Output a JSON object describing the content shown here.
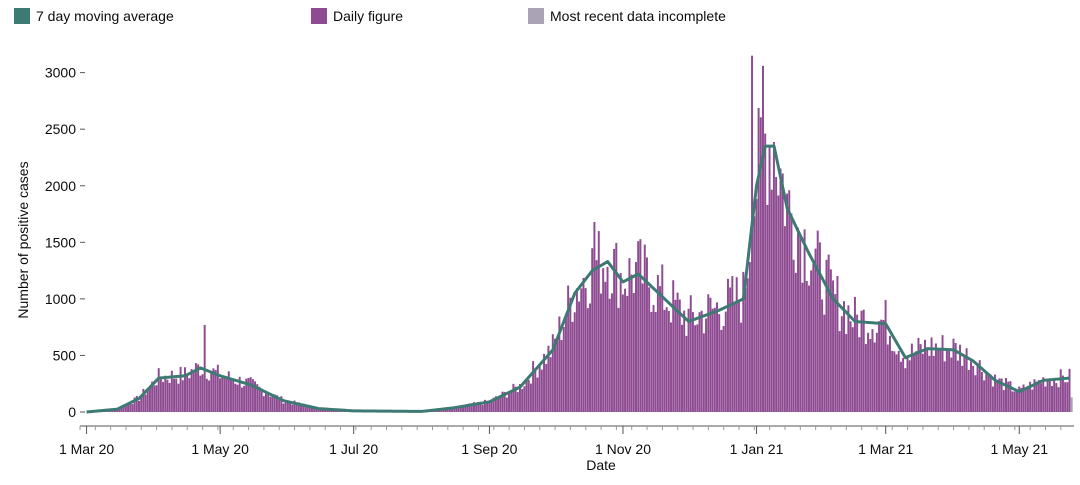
{
  "legend": [
    {
      "label": "7 day moving average",
      "color": "#3d7a74"
    },
    {
      "label": "Daily figure",
      "color": "#8e4b91"
    },
    {
      "label": "Most recent data incomplete",
      "color": "#a9a3b5"
    }
  ],
  "chart_data": {
    "type": "bar",
    "title": "",
    "xlabel": "Date",
    "ylabel": "Number of positive cases",
    "ylim": [
      0,
      3200
    ],
    "yticks": [
      "0",
      "500",
      "1000",
      "1500",
      "2000",
      "2500",
      "3000"
    ],
    "xticks": [
      {
        "label": "1 Mar 20",
        "date": "2020-03-01"
      },
      {
        "label": "1 May 20",
        "date": "2020-05-01"
      },
      {
        "label": "1 Jul 20",
        "date": "2020-07-01"
      },
      {
        "label": "1 Sep 20",
        "date": "2020-09-01"
      },
      {
        "label": "1 Nov 20",
        "date": "2020-11-01"
      },
      {
        "label": "1 Jan 21",
        "date": "2021-01-01"
      },
      {
        "label": "1 Mar 21",
        "date": "2021-03-01"
      },
      {
        "label": "1 May 21",
        "date": "2021-05-01"
      }
    ],
    "xrange": [
      "2020-02-27",
      "2021-05-26"
    ],
    "grid": false,
    "legend_position": "top",
    "moving_average": {
      "name": "7 day moving average",
      "color": "#3d7a74",
      "points": [
        [
          "2020-03-01",
          0
        ],
        [
          "2020-03-15",
          25
        ],
        [
          "2020-03-25",
          120
        ],
        [
          "2020-04-03",
          300
        ],
        [
          "2020-04-15",
          320
        ],
        [
          "2020-04-22",
          390
        ],
        [
          "2020-05-01",
          320
        ],
        [
          "2020-05-15",
          240
        ],
        [
          "2020-05-30",
          100
        ],
        [
          "2020-06-15",
          30
        ],
        [
          "2020-07-01",
          10
        ],
        [
          "2020-08-01",
          5
        ],
        [
          "2020-08-15",
          35
        ],
        [
          "2020-09-01",
          90
        ],
        [
          "2020-09-15",
          220
        ],
        [
          "2020-09-30",
          550
        ],
        [
          "2020-10-10",
          1050
        ],
        [
          "2020-10-18",
          1250
        ],
        [
          "2020-10-25",
          1330
        ],
        [
          "2020-11-01",
          1150
        ],
        [
          "2020-11-08",
          1220
        ],
        [
          "2020-11-20",
          1000
        ],
        [
          "2020-12-01",
          800
        ],
        [
          "2020-12-15",
          900
        ],
        [
          "2020-12-26",
          1000
        ],
        [
          "2021-01-01",
          2000
        ],
        [
          "2021-01-05",
          2350
        ],
        [
          "2021-01-09",
          2350
        ],
        [
          "2021-01-15",
          1800
        ],
        [
          "2021-01-25",
          1400
        ],
        [
          "2021-02-05",
          1000
        ],
        [
          "2021-02-15",
          800
        ],
        [
          "2021-03-01",
          780
        ],
        [
          "2021-03-10",
          480
        ],
        [
          "2021-03-20",
          560
        ],
        [
          "2021-04-01",
          550
        ],
        [
          "2021-04-10",
          450
        ],
        [
          "2021-04-20",
          280
        ],
        [
          "2021-05-01",
          180
        ],
        [
          "2021-05-12",
          280
        ],
        [
          "2021-05-18",
          290
        ],
        [
          "2021-05-24",
          300
        ]
      ]
    },
    "daily_bars": {
      "name": "Daily figure",
      "color": "#8e4b91",
      "peaks": [
        {
          "date": "2020-04-24",
          "value": 770
        },
        {
          "date": "2020-10-19",
          "value": 1680
        },
        {
          "date": "2020-12-30",
          "value": 3150
        },
        {
          "date": "2021-01-04",
          "value": 3060
        }
      ],
      "note": "approximately one bar per day, heights follow the moving average with daily fluctuation"
    },
    "incomplete": {
      "name": "Most recent data incomplete",
      "color": "#a9a3b5",
      "dates": [
        "2021-05-25"
      ],
      "values": [
        130
      ]
    }
  }
}
